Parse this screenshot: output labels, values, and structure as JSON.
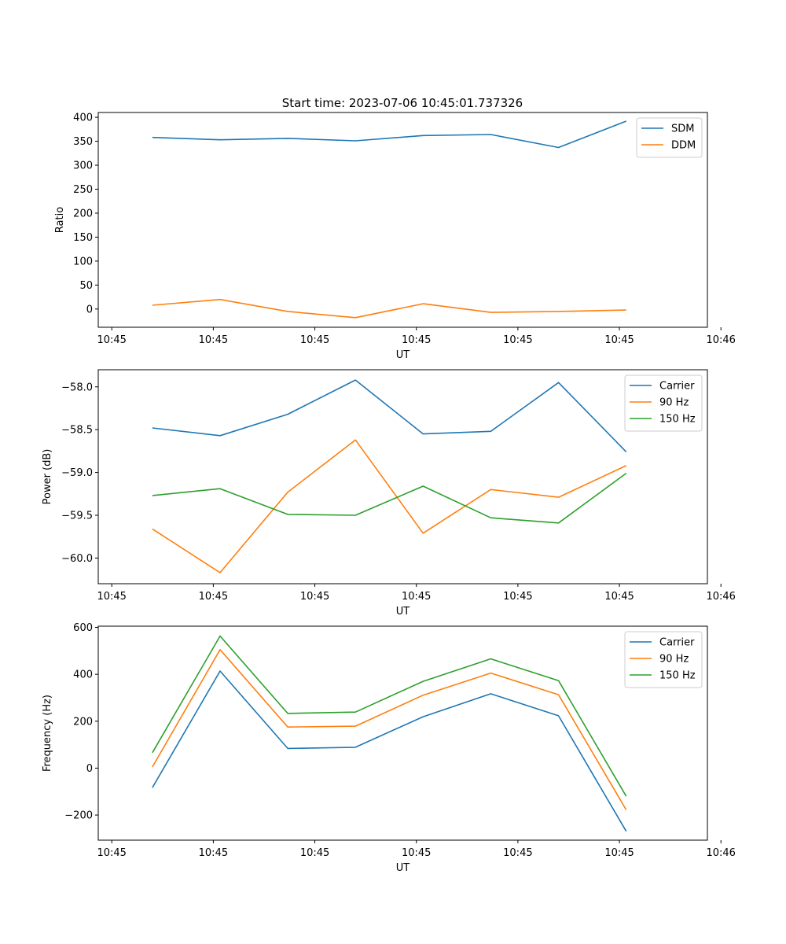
{
  "title": "Start time: 2023-07-06 10:45:01.737326",
  "colors": {
    "series1": "#1f77b4",
    "series2": "#ff7f0e",
    "series3": "#2ca02c",
    "axis": "#000000",
    "legend_border": "#cccccc"
  },
  "chart_data": [
    {
      "type": "line",
      "title": "Start time: 2023-07-06 10:45:01.737326",
      "xlabel": "UT",
      "ylabel": "Ratio",
      "x": [
        1,
        2,
        3,
        4,
        5,
        6,
        7,
        8
      ],
      "xlim": [
        0.2,
        9.2
      ],
      "xticks": [
        0.4,
        1.9,
        3.4,
        4.9,
        6.4,
        7.9,
        9.4
      ],
      "xtick_labels": [
        "10:45",
        "10:45",
        "10:45",
        "10:45",
        "10:45",
        "10:45",
        "10:46"
      ],
      "ylim": [
        -38,
        410
      ],
      "yticks": [
        0,
        50,
        100,
        150,
        200,
        250,
        300,
        350,
        400
      ],
      "ytick_labels": [
        "0",
        "50",
        "100",
        "150",
        "200",
        "250",
        "300",
        "350",
        "400"
      ],
      "legend_position": "upper-right",
      "series": [
        {
          "name": "SDM",
          "color": "#1f77b4",
          "values": [
            358,
            353,
            356,
            351,
            362,
            364,
            337,
            392
          ]
        },
        {
          "name": "DDM",
          "color": "#ff7f0e",
          "values": [
            8,
            20,
            -5,
            -18,
            11,
            -7,
            -5,
            -2
          ]
        }
      ]
    },
    {
      "type": "line",
      "xlabel": "UT",
      "ylabel": "Power (dB)",
      "x": [
        1,
        2,
        3,
        4,
        5,
        6,
        7,
        8
      ],
      "xlim": [
        0.2,
        9.2
      ],
      "xticks": [
        0.4,
        1.9,
        3.4,
        4.9,
        6.4,
        7.9,
        9.4
      ],
      "xtick_labels": [
        "10:45",
        "10:45",
        "10:45",
        "10:45",
        "10:45",
        "10:45",
        "10:46"
      ],
      "ylim": [
        -60.3,
        -57.8
      ],
      "yticks": [
        -60.0,
        -59.5,
        -59.0,
        -58.5,
        -58.0
      ],
      "ytick_labels": [
        "−60.0",
        "−59.5",
        "−59.0",
        "−58.5",
        "−58.0"
      ],
      "legend_position": "upper-right",
      "series": [
        {
          "name": "Carrier",
          "color": "#1f77b4",
          "values": [
            -58.48,
            -58.57,
            -58.32,
            -57.92,
            -58.55,
            -58.52,
            -57.95,
            -58.76
          ]
        },
        {
          "name": "90 Hz",
          "color": "#ff7f0e",
          "values": [
            -59.66,
            -60.17,
            -59.23,
            -58.62,
            -59.71,
            -59.2,
            -59.29,
            -58.92
          ]
        },
        {
          "name": "150 Hz",
          "color": "#2ca02c",
          "values": [
            -59.27,
            -59.19,
            -59.49,
            -59.5,
            -59.16,
            -59.53,
            -59.59,
            -59.01
          ]
        }
      ]
    },
    {
      "type": "line",
      "xlabel": "UT",
      "ylabel": "Frequency (Hz)",
      "x": [
        1,
        2,
        3,
        4,
        5,
        6,
        7,
        8
      ],
      "xlim": [
        0.2,
        9.2
      ],
      "xticks": [
        0.4,
        1.9,
        3.4,
        4.9,
        6.4,
        7.9,
        9.4
      ],
      "xtick_labels": [
        "10:45",
        "10:45",
        "10:45",
        "10:45",
        "10:45",
        "10:45",
        "10:46"
      ],
      "ylim": [
        -307,
        605
      ],
      "yticks": [
        -200,
        0,
        200,
        400,
        600
      ],
      "ytick_labels": [
        "−200",
        "0",
        "200",
        "400",
        "600"
      ],
      "legend_position": "upper-right",
      "series": [
        {
          "name": "Carrier",
          "color": "#1f77b4",
          "values": [
            -83,
            414,
            84,
            89,
            219,
            317,
            223,
            -269
          ]
        },
        {
          "name": "90 Hz",
          "color": "#ff7f0e",
          "values": [
            5,
            505,
            175,
            179,
            311,
            405,
            313,
            -178
          ]
        },
        {
          "name": "150 Hz",
          "color": "#2ca02c",
          "values": [
            66,
            563,
            233,
            239,
            370,
            466,
            373,
            -120
          ]
        }
      ]
    }
  ]
}
